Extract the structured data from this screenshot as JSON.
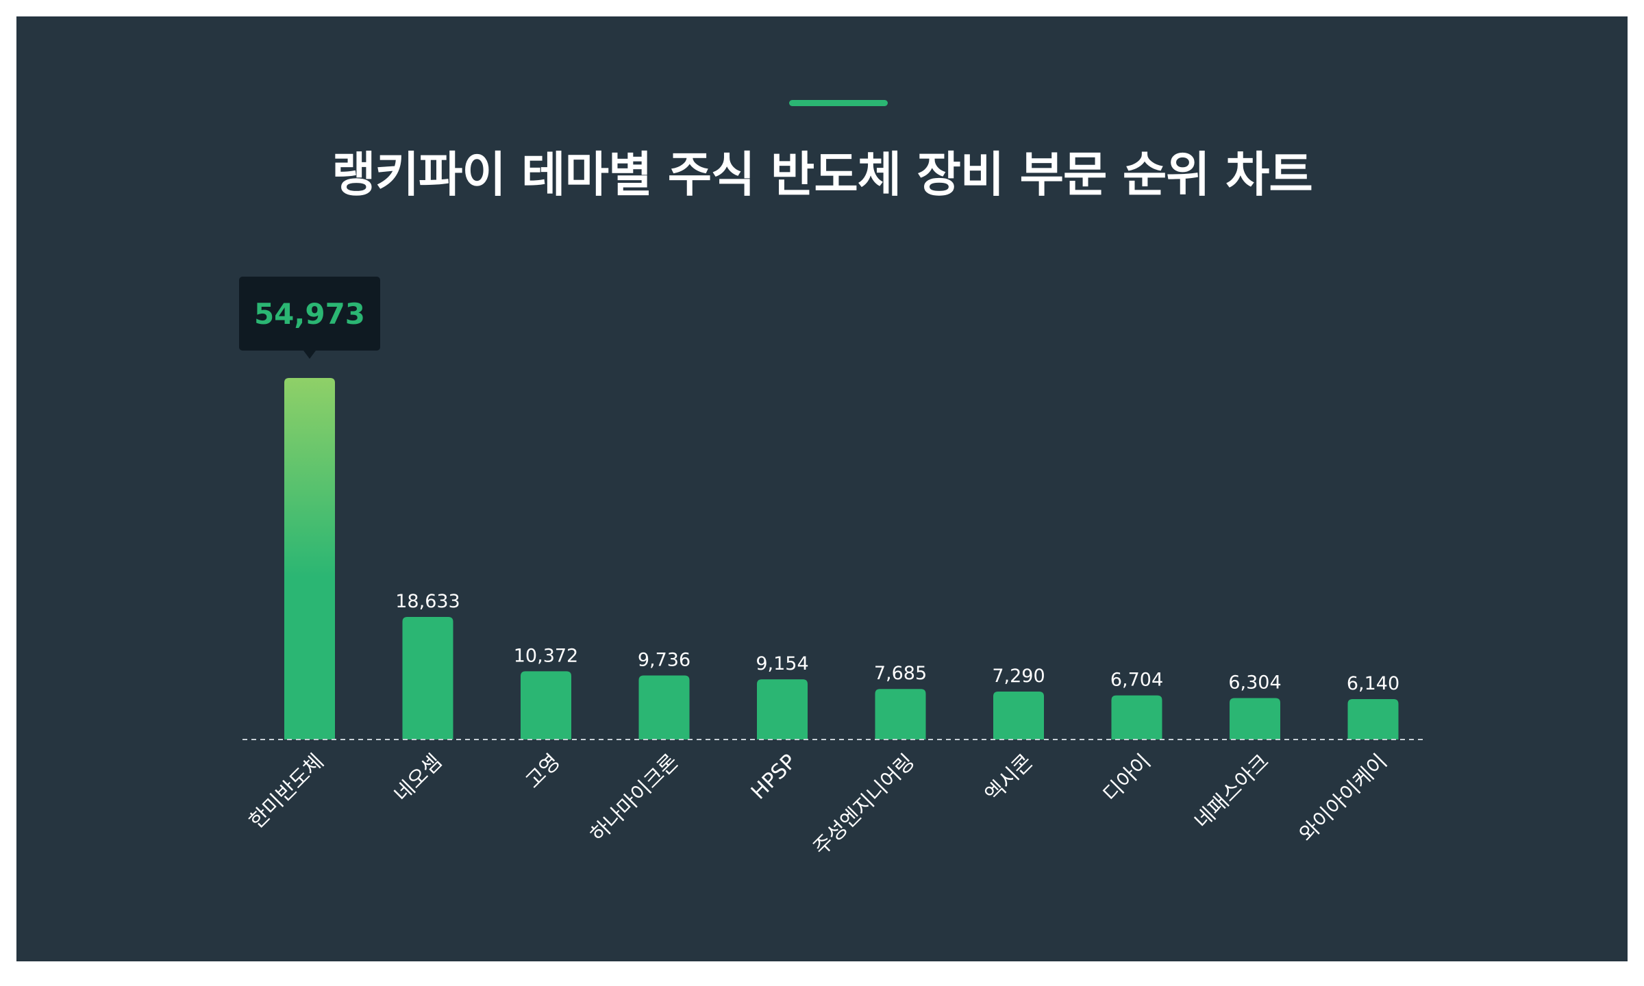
{
  "accent_color": "#2bb673",
  "chart_data": {
    "type": "bar",
    "title": "랭키파이 테마별 주식 반도체 장비 부문 순위 차트",
    "xlabel": "",
    "ylabel": "",
    "categories": [
      "한미반도체",
      "네오셈",
      "고영",
      "하나마이크론",
      "HPSP",
      "주성엔지니어링",
      "엑시콘",
      "디아이",
      "네패스아크",
      "와이아이케이"
    ],
    "values": [
      54973,
      18633,
      10372,
      9736,
      9154,
      7685,
      7290,
      6704,
      6304,
      6140
    ],
    "value_labels": [
      "54,973",
      "18,633",
      "10,372",
      "9,736",
      "9,154",
      "7,685",
      "7,290",
      "6,704",
      "6,304",
      "6,140"
    ],
    "highlight_index": 0,
    "ylim": [
      0,
      54973
    ],
    "grid": false,
    "legend": "none",
    "colors": {
      "bar": "#2bb673",
      "bar_top_highlight": "#8fd068",
      "tooltip_bg": "#0f1a22",
      "tooltip_text": "#2bb673",
      "label_text": "#ffffff",
      "baseline": "#c9d1d7"
    }
  }
}
